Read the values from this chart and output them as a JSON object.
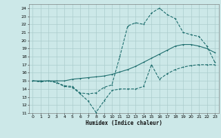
{
  "xlabel": "Humidex (Indice chaleur)",
  "xlim": [
    -0.5,
    23.5
  ],
  "ylim": [
    11,
    24.5
  ],
  "xticks": [
    0,
    1,
    2,
    3,
    4,
    5,
    6,
    7,
    8,
    9,
    10,
    11,
    12,
    13,
    14,
    15,
    16,
    17,
    18,
    19,
    20,
    21,
    22,
    23
  ],
  "yticks": [
    11,
    12,
    13,
    14,
    15,
    16,
    17,
    18,
    19,
    20,
    21,
    22,
    23,
    24
  ],
  "bg_color": "#cce8e8",
  "grid_color": "#aacccc",
  "line_color": "#1a6b6b",
  "line1_x": [
    0,
    1,
    2,
    3,
    4,
    5,
    6,
    7,
    8,
    9,
    10,
    11,
    12,
    13,
    14,
    15,
    16,
    17,
    18,
    19,
    20,
    21,
    22,
    23
  ],
  "line1_y": [
    15,
    14.9,
    15.0,
    14.8,
    14.4,
    14.3,
    13.5,
    13.4,
    13.5,
    14.2,
    14.5,
    18.0,
    21.8,
    22.2,
    22.0,
    23.4,
    24.0,
    23.2,
    22.7,
    21.0,
    20.7,
    20.5,
    19.3,
    17.3
  ],
  "line2_x": [
    0,
    1,
    2,
    3,
    4,
    5,
    6,
    7,
    8,
    9,
    10,
    11,
    12,
    13,
    14,
    15,
    16,
    17,
    18,
    19,
    20,
    21,
    22,
    23
  ],
  "line2_y": [
    15,
    15.0,
    15.0,
    15.0,
    15.0,
    15.2,
    15.3,
    15.4,
    15.5,
    15.6,
    15.8,
    16.1,
    16.4,
    16.8,
    17.3,
    17.8,
    18.3,
    18.8,
    19.3,
    19.5,
    19.5,
    19.3,
    19.0,
    18.5
  ],
  "line3_x": [
    0,
    1,
    2,
    3,
    4,
    5,
    6,
    7,
    8,
    9,
    10,
    11,
    12,
    13,
    14,
    15,
    16,
    17,
    18,
    19,
    20,
    21,
    22,
    23
  ],
  "line3_y": [
    15,
    14.9,
    15.0,
    14.8,
    14.3,
    14.2,
    13.4,
    12.5,
    11.1,
    12.5,
    13.8,
    14.0,
    14.0,
    14.0,
    14.3,
    17.0,
    15.2,
    15.9,
    16.4,
    16.7,
    16.9,
    17.0,
    17.0,
    17.0
  ]
}
